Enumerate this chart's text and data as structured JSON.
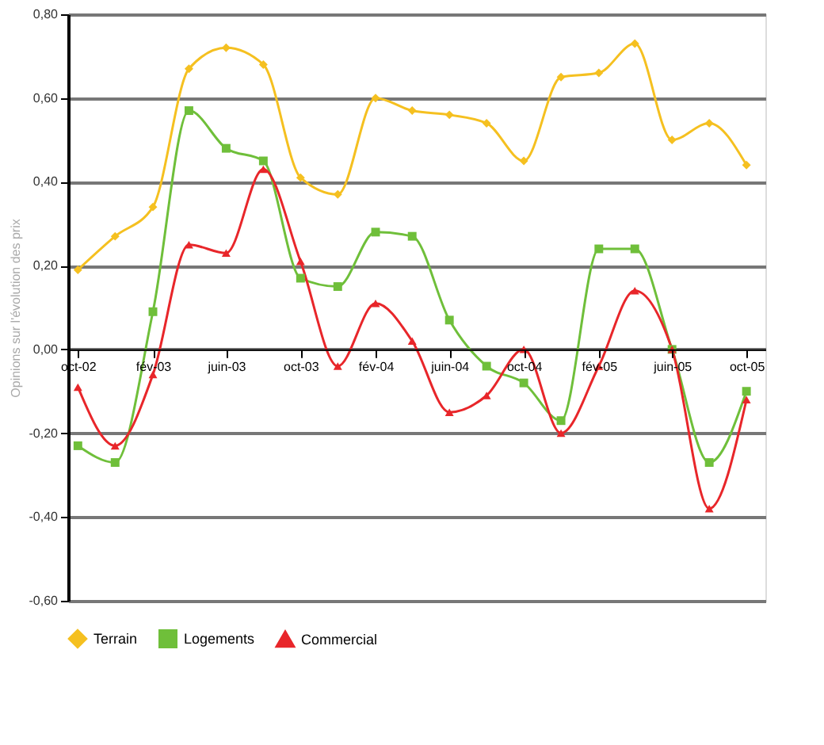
{
  "chart_data": {
    "type": "line",
    "ylabel": "Opinions sur l'évolution des prix",
    "x": [
      "2002-10",
      "2002-12",
      "2003-02",
      "2003-04",
      "2003-06",
      "2003-08",
      "2003-10",
      "2003-12",
      "2004-02",
      "2004-04",
      "2004-06",
      "2004-08",
      "2004-10",
      "2004-12",
      "2005-02",
      "2005-04",
      "2005-06",
      "2005-08",
      "2005-10"
    ],
    "series": [
      {
        "name": "Terrain",
        "color": "#f5c020",
        "marker": "diamond",
        "values": [
          0.19,
          0.27,
          0.34,
          0.67,
          0.72,
          0.68,
          0.41,
          0.37,
          0.6,
          0.57,
          0.56,
          0.54,
          0.45,
          0.65,
          0.66,
          0.73,
          0.5,
          0.54,
          0.44
        ]
      },
      {
        "name": "Logements",
        "color": "#6fbf3a",
        "marker": "square",
        "values": [
          -0.23,
          -0.27,
          0.09,
          0.57,
          0.48,
          0.45,
          0.17,
          0.15,
          0.28,
          0.27,
          0.07,
          -0.04,
          -0.08,
          -0.17,
          0.24,
          0.24,
          0.0,
          -0.27,
          -0.1
        ]
      },
      {
        "name": "Commercial",
        "color": "#e8262a",
        "marker": "triangle",
        "values": [
          -0.09,
          -0.23,
          -0.06,
          0.25,
          0.23,
          0.43,
          0.21,
          -0.04,
          0.11,
          0.02,
          -0.15,
          -0.11,
          0.0,
          -0.2,
          -0.04,
          0.14,
          0.0,
          -0.38,
          -0.12
        ]
      }
    ],
    "xlim": [
      "2002-09-15",
      "2005-11-01"
    ],
    "xticks": [
      {
        "value": "2002-10",
        "label": "oct-02"
      },
      {
        "value": "2003-02",
        "label": "fév-03"
      },
      {
        "value": "2003-06",
        "label": "juin-03"
      },
      {
        "value": "2003-10",
        "label": "oct-03"
      },
      {
        "value": "2004-02",
        "label": "fév-04"
      },
      {
        "value": "2004-06",
        "label": "juin-04"
      },
      {
        "value": "2004-10",
        "label": "oct-04"
      },
      {
        "value": "2005-02",
        "label": "fév-05"
      },
      {
        "value": "2005-06",
        "label": "juin-05"
      },
      {
        "value": "2005-10",
        "label": "oct-05"
      }
    ],
    "ylim": [
      -0.6,
      0.8
    ],
    "yticks": [
      {
        "value": -0.6,
        "label": "-0,60"
      },
      {
        "value": -0.4,
        "label": "-0,40"
      },
      {
        "value": -0.2,
        "label": "-0,20"
      },
      {
        "value": 0,
        "label": "0,00"
      },
      {
        "value": 0.2,
        "label": "0,20"
      },
      {
        "value": 0.4,
        "label": "0,40"
      },
      {
        "value": 0.6,
        "label": "0,60"
      },
      {
        "value": 0.8,
        "label": "0,80"
      }
    ],
    "grid": "y",
    "legend": "bottom",
    "line_style": "solid"
  }
}
